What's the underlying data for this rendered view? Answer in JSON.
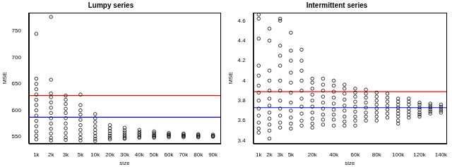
{
  "chart_data": [
    {
      "type": "scatter",
      "title": "Lumpy series",
      "x_label": "size",
      "y_label": "MSE",
      "color": "black",
      "marker": "circle",
      "grid": false,
      "categories": [
        "1k",
        "2k",
        "3k",
        "5k",
        "10k",
        "20k",
        "30k",
        "40k",
        "50k",
        "60k",
        "70k",
        "80k",
        "90k"
      ],
      "values": [
        [
          745,
          660,
          650,
          640,
          630,
          620,
          610,
          600,
          590,
          580,
          570,
          560,
          552,
          545
        ],
        [
          777,
          658,
          632,
          625,
          615,
          605,
          595,
          585,
          575,
          565,
          556,
          548,
          543
        ],
        [
          628,
          620,
          612,
          603,
          595,
          585,
          575,
          566,
          557,
          549,
          544
        ],
        [
          630,
          610,
          600,
          592,
          582,
          572,
          563,
          555,
          548,
          543
        ],
        [
          593,
          585,
          578,
          570,
          563,
          557,
          551,
          546,
          542
        ],
        [
          572,
          566,
          561,
          556,
          552,
          548,
          545
        ],
        [
          567,
          562,
          558,
          554,
          551,
          548,
          546
        ],
        [
          563,
          559,
          556,
          553,
          550,
          548
        ],
        [
          560,
          557,
          554,
          552,
          550,
          548
        ],
        [
          557,
          555,
          553,
          551,
          549
        ],
        [
          556,
          554,
          552,
          551,
          549
        ],
        [
          555,
          553,
          552,
          550,
          549
        ],
        [
          554,
          552,
          551,
          550
        ]
      ],
      "hlines": [
        {
          "value": 628,
          "color": "red"
        },
        {
          "value": 587,
          "color": "blue"
        }
      ],
      "ylim": [
        537,
        785
      ],
      "yticks": [
        550,
        600,
        650,
        700,
        750
      ]
    },
    {
      "type": "scatter",
      "title": "Intermittent series",
      "x_label": "size",
      "y_label": "MSE",
      "color": "black",
      "marker": "circle",
      "grid": false,
      "categories": [
        "1k",
        "2k",
        "3k",
        "5k",
        null,
        "20k",
        null,
        "40k",
        null,
        "60k",
        null,
        "80k",
        null,
        "100k",
        null,
        "120k",
        null,
        "140k"
      ],
      "values": [
        [
          4.66,
          4.62,
          4.42,
          4.15,
          4.05,
          3.95,
          3.88,
          3.8,
          3.72,
          3.65,
          3.58,
          3.52,
          3.48
        ],
        [
          4.52,
          4.4,
          4.1,
          4.0,
          3.9,
          3.82,
          3.75,
          3.68,
          3.62,
          3.56,
          3.5,
          3.42
        ],
        [
          4.62,
          4.6,
          4.35,
          4.25,
          4.15,
          4.0,
          3.9,
          3.8,
          3.72,
          3.65,
          3.58,
          3.53
        ],
        [
          4.48,
          4.3,
          4.2,
          4.08,
          3.98,
          3.88,
          3.78,
          3.7,
          3.63,
          3.57,
          3.52
        ],
        [
          4.31,
          4.2,
          4.1,
          4.0,
          3.9,
          3.82,
          3.74,
          3.67,
          3.6,
          3.55
        ],
        [
          4.02,
          3.98,
          3.92,
          3.86,
          3.8,
          3.74,
          3.68,
          3.62,
          3.57,
          3.53
        ],
        [
          4.02,
          3.96,
          3.9,
          3.84,
          3.78,
          3.72,
          3.66,
          3.61,
          3.56
        ],
        [
          4.0,
          3.95,
          3.89,
          3.83,
          3.77,
          3.71,
          3.66,
          3.61,
          3.55
        ],
        [
          3.96,
          3.92,
          3.87,
          3.81,
          3.75,
          3.7,
          3.64,
          3.59,
          3.55
        ],
        [
          3.92,
          3.88,
          3.84,
          3.79,
          3.74,
          3.69,
          3.64,
          3.6,
          3.55
        ],
        [
          3.91,
          3.87,
          3.83,
          3.78,
          3.73,
          3.68,
          3.64,
          3.6
        ],
        [
          3.88,
          3.84,
          3.8,
          3.76,
          3.72,
          3.68,
          3.64,
          3.6
        ],
        [
          3.87,
          3.83,
          3.79,
          3.75,
          3.71,
          3.67,
          3.63
        ],
        [
          3.82,
          3.79,
          3.76,
          3.73,
          3.7,
          3.67,
          3.64,
          3.6,
          3.57
        ],
        [
          3.82,
          3.79,
          3.76,
          3.72,
          3.69,
          3.66,
          3.63
        ],
        [
          3.78,
          3.76,
          3.73,
          3.71,
          3.68,
          3.66,
          3.64
        ],
        [
          3.77,
          3.75,
          3.73,
          3.71,
          3.69,
          3.67
        ],
        [
          3.76,
          3.74,
          3.72,
          3.7,
          3.68
        ]
      ],
      "hlines": [
        {
          "value": 3.89,
          "color": "red"
        },
        {
          "value": 3.73,
          "color": "blue"
        }
      ],
      "ylim": [
        3.37,
        4.68
      ],
      "yticks": [
        3.4,
        3.6,
        3.8,
        4.0,
        4.2,
        4.4,
        4.6
      ]
    }
  ]
}
